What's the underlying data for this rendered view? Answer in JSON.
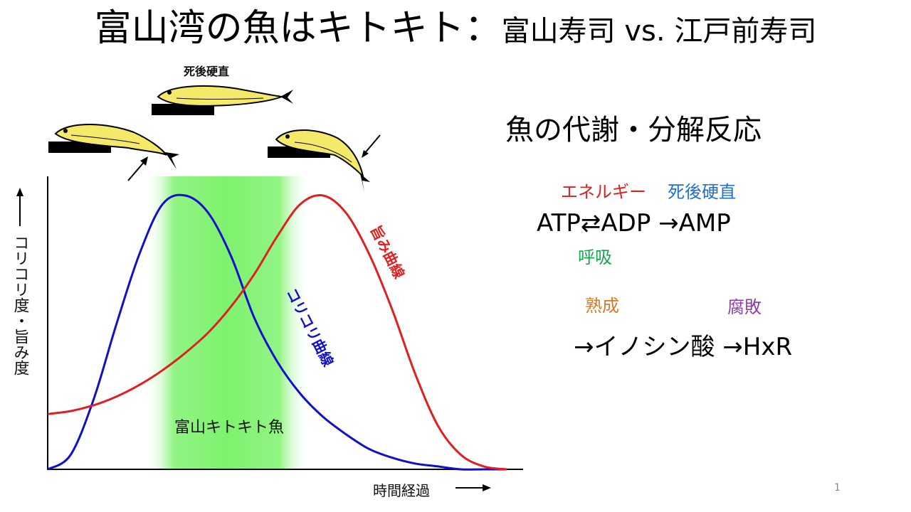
{
  "title": {
    "main": "富山湾の魚はキトキト：",
    "sub": "富山寿司 vs. 江戸前寿司"
  },
  "colors": {
    "energy": "#e02020",
    "rigor": "#1f6fd1",
    "respiration": "#12a84a",
    "ripening": "#d9792a",
    "decay": "#8a3fa8",
    "umami_curve": "#e02020",
    "crunch_curve": "#1010cc",
    "highlight": "#7ef26e",
    "fish_body": "#f5e96a"
  },
  "diagram": {
    "rigor_label": "死後硬直",
    "y_axis_label": "コリコリ度・旨み度",
    "x_axis_label": "時間経過",
    "umami_curve_label": "旨み曲線",
    "crunch_curve_label": "コリコリ曲線",
    "zone_label": "富山キトキト魚",
    "fish_icons": [
      "fresh-fish",
      "rigor-fish",
      "relaxed-fish"
    ]
  },
  "chart_data": {
    "type": "line",
    "title": "",
    "xlabel": "時間経過",
    "ylabel": "コリコリ度・旨み度",
    "xlim": [
      0,
      100
    ],
    "ylim": [
      0,
      100
    ],
    "highlight_range": [
      21,
      57
    ],
    "series": [
      {
        "name": "コリコリ曲線",
        "x": [
          0,
          5,
          10,
          15,
          20,
          25,
          30,
          35,
          40,
          45,
          50,
          55,
          60,
          65,
          70,
          75,
          80,
          85,
          90,
          95,
          100
        ],
        "values": [
          0,
          5,
          24,
          50,
          74,
          91,
          94,
          88,
          73,
          52,
          37,
          26,
          18,
          12,
          7,
          4,
          2,
          1,
          0,
          0,
          0
        ]
      },
      {
        "name": "旨み曲線",
        "x": [
          0,
          5,
          10,
          15,
          20,
          25,
          30,
          35,
          40,
          45,
          50,
          55,
          60,
          65,
          70,
          75,
          80,
          85,
          90,
          95,
          100
        ],
        "values": [
          19,
          20,
          22,
          25,
          29,
          34,
          40,
          47,
          56,
          67,
          80,
          91,
          94,
          88,
          74,
          55,
          33,
          15,
          5,
          1,
          0
        ]
      }
    ]
  },
  "panel": {
    "heading": "魚の代謝・分解反応",
    "energy": "エネルギー",
    "rigor": "死後硬直",
    "formula1": "ATP⇄ADP →AMP",
    "respiration": "呼吸",
    "ripening": "熟成",
    "decay": "腐敗",
    "formula2": "→イノシン酸 →HxR"
  },
  "page_number": "1"
}
